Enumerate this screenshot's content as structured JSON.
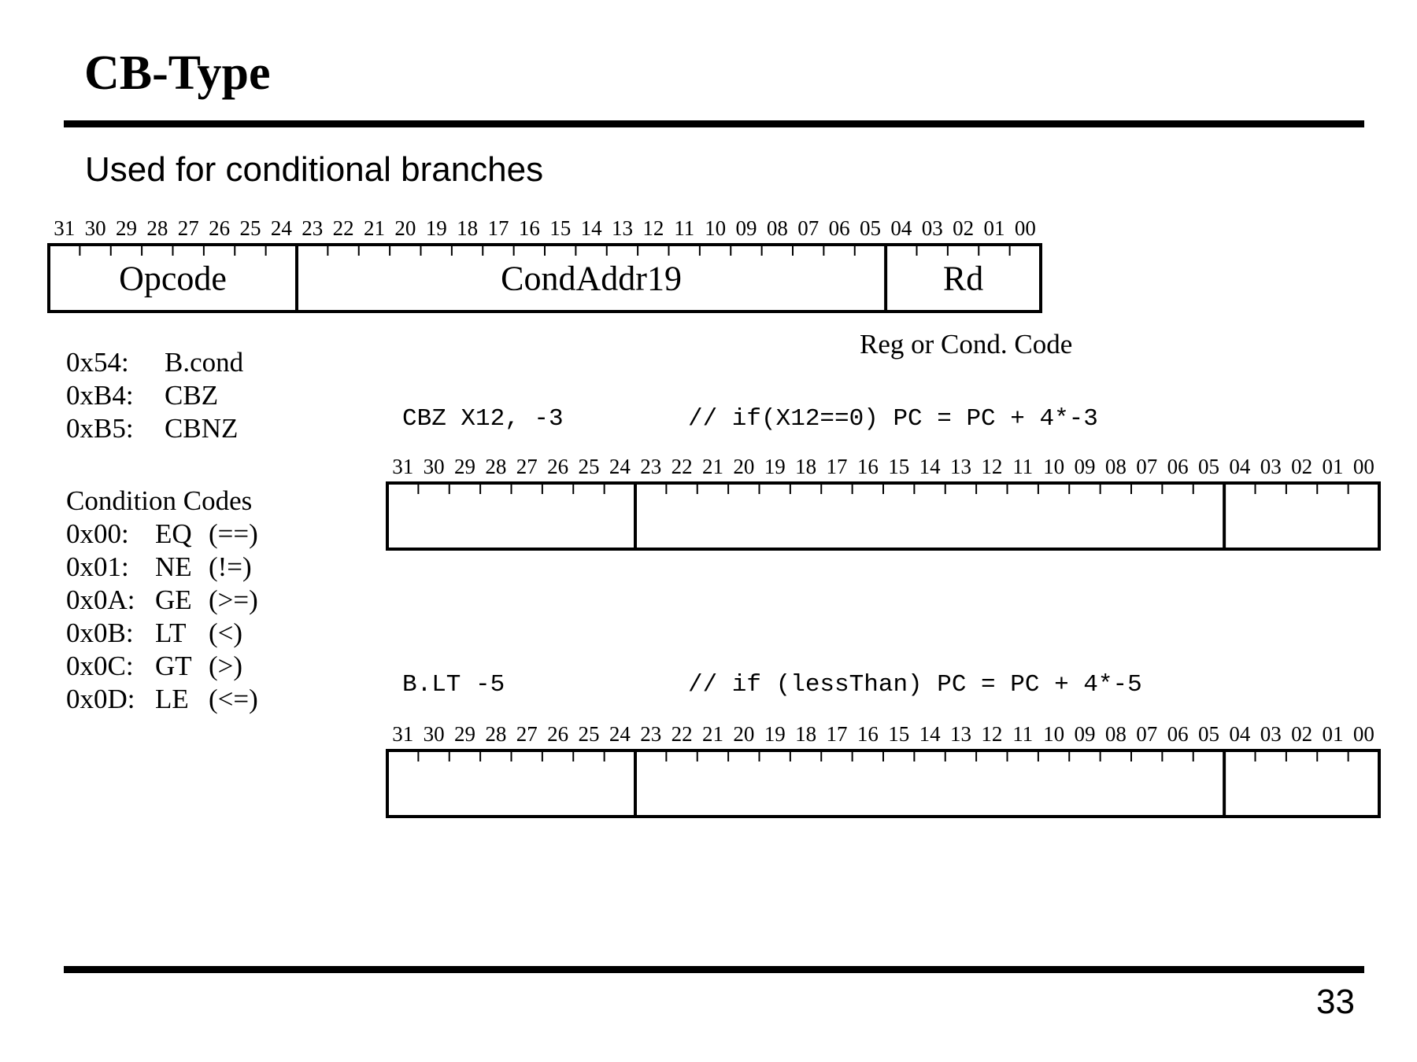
{
  "slide": {
    "title": "CB-Type",
    "subtitle": "Used for conditional branches",
    "page_number": "33"
  },
  "bit_labels": [
    "31",
    "30",
    "29",
    "28",
    "27",
    "26",
    "25",
    "24",
    "23",
    "22",
    "21",
    "20",
    "19",
    "18",
    "17",
    "16",
    "15",
    "14",
    "13",
    "12",
    "11",
    "10",
    "09",
    "08",
    "07",
    "06",
    "05",
    "04",
    "03",
    "02",
    "01",
    "00"
  ],
  "format": {
    "fields": [
      {
        "name": "Opcode",
        "high_bit": 31,
        "low_bit": 24
      },
      {
        "name": "CondAddr19",
        "high_bit": 23,
        "low_bit": 5
      },
      {
        "name": "Rd",
        "high_bit": 4,
        "low_bit": 0
      }
    ],
    "rd_note": "Reg or Cond. Code"
  },
  "opcodes": [
    {
      "code": "0x54:",
      "mnemonic": "B.cond"
    },
    {
      "code": "0xB4:",
      "mnemonic": "CBZ"
    },
    {
      "code": "0xB5:",
      "mnemonic": "CBNZ"
    }
  ],
  "condition_codes": {
    "heading": "Condition Codes",
    "items": [
      {
        "code": "0x00:",
        "name": "EQ",
        "op": "(==)"
      },
      {
        "code": "0x01:",
        "name": "NE",
        "op": "(!=)"
      },
      {
        "code": "0x0A:",
        "name": "GE",
        "op": "(>=)"
      },
      {
        "code": "0x0B:",
        "name": "LT",
        "op": "(<)"
      },
      {
        "code": "0x0C:",
        "name": "GT",
        "op": "(>)"
      },
      {
        "code": "0x0D:",
        "name": "LE",
        "op": "(<=)"
      }
    ]
  },
  "examples": [
    {
      "instruction": "CBZ X12, -3",
      "comment": "// if(X12==0) PC = PC + 4*-3"
    },
    {
      "instruction": "B.LT -5",
      "comment": "// if (lessThan) PC = PC + 4*-5"
    }
  ]
}
